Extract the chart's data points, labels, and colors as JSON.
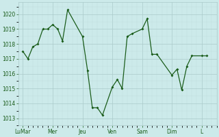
{
  "background_color": "#cceaea",
  "line_color": "#1a5c1a",
  "marker_color": "#1a5c1a",
  "grid_color_major": "#aacaca",
  "grid_color_minor": "#c0dcdc",
  "tick_label_color": "#1a5c1a",
  "ylim": [
    1012.5,
    1020.8
  ],
  "yticks": [
    1013,
    1014,
    1015,
    1016,
    1017,
    1018,
    1019,
    1020
  ],
  "x_day_positions": [
    0,
    1,
    2,
    3,
    4,
    5,
    6,
    7
  ],
  "x_day_labels": [
    "LuMar",
    "Mer",
    "Jeu",
    "Ven",
    "Sam",
    "Dim",
    "L",
    ""
  ],
  "data_x": [
    0.0,
    0.17,
    0.33,
    0.5,
    0.67,
    0.83,
    1.0,
    1.17,
    1.33,
    1.5,
    2.0,
    2.17,
    2.33,
    2.5,
    2.67,
    3.0,
    3.17,
    3.33,
    3.5,
    3.67,
    4.0,
    4.17,
    4.33,
    4.5,
    5.0,
    5.17,
    5.33,
    5.5,
    5.67,
    6.0,
    6.17
  ],
  "data_y": [
    1017.5,
    1017.0,
    1017.8,
    1018.0,
    1019.0,
    1019.0,
    1019.3,
    1019.0,
    1018.2,
    1020.3,
    1018.5,
    1016.2,
    1013.7,
    1013.7,
    1013.2,
    1015.1,
    1015.6,
    1015.0,
    1018.5,
    1018.7,
    1019.0,
    1019.7,
    1017.3,
    1017.3,
    1015.9,
    1016.3,
    1014.9,
    1016.5,
    1017.2,
    1017.2,
    1017.2
  ]
}
